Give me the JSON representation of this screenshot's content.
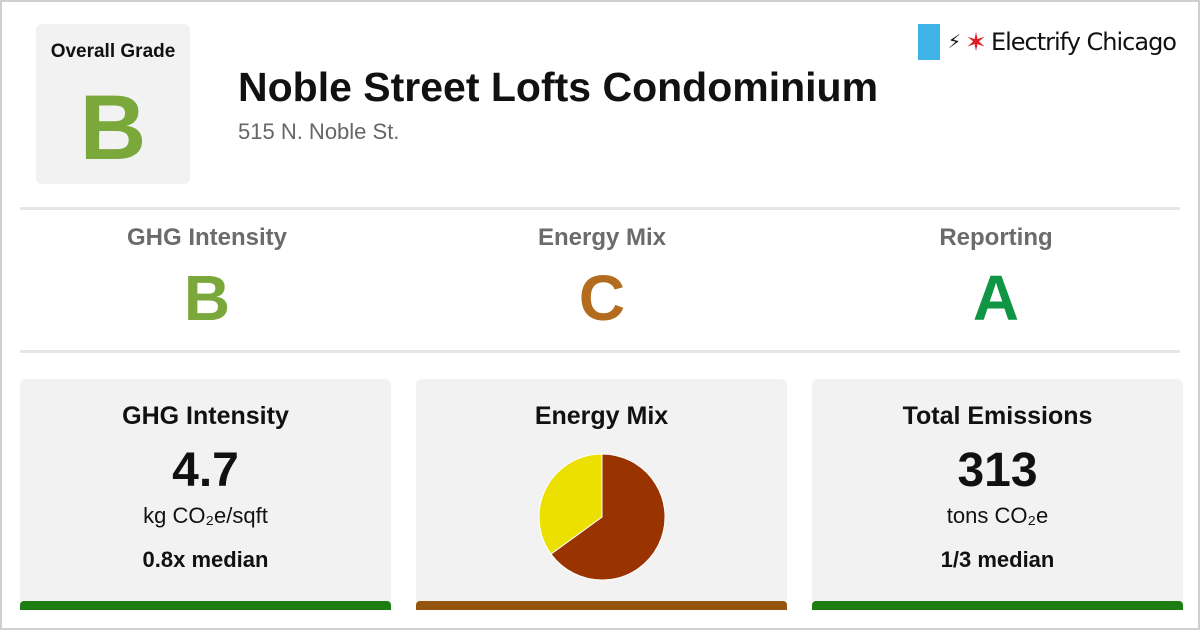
{
  "colors": {
    "grade_a": "#109545",
    "grade_b": "#7aa83b",
    "grade_c": "#b36b1d",
    "bar_good": "#1e7d12",
    "bar_mid": "#94560e",
    "pie_dark": "#993300",
    "pie_yellow": "#ebe002",
    "brand_flag": "#3fb3e8",
    "brand_star": "#e01b22"
  },
  "header": {
    "overall_label": "Overall Grade",
    "overall_grade": "B",
    "building_name": "Noble Street Lofts Condominium",
    "address": "515 N. Noble St."
  },
  "brand": {
    "plug_icon": "⚡",
    "star_icon": "✶",
    "name": "Electrify Chicago"
  },
  "subgrades": [
    {
      "label": "GHG Intensity",
      "grade": "B",
      "color_key": "grade_b"
    },
    {
      "label": "Energy Mix",
      "grade": "C",
      "color_key": "grade_c"
    },
    {
      "label": "Reporting",
      "grade": "A",
      "color_key": "grade_a"
    }
  ],
  "panels": {
    "ghg": {
      "title": "GHG Intensity",
      "value": "4.7",
      "unit": "kg CO₂e/sqft",
      "compare": "0.8x median"
    },
    "mix": {
      "title": "Energy Mix"
    },
    "total": {
      "title": "Total Emissions",
      "value": "313",
      "unit": "tons CO₂e",
      "compare": "1/3 median"
    }
  },
  "chart_data": {
    "type": "pie",
    "values": [
      0.65,
      0.35
    ],
    "colors": [
      "#993300",
      "#ebe002"
    ]
  }
}
